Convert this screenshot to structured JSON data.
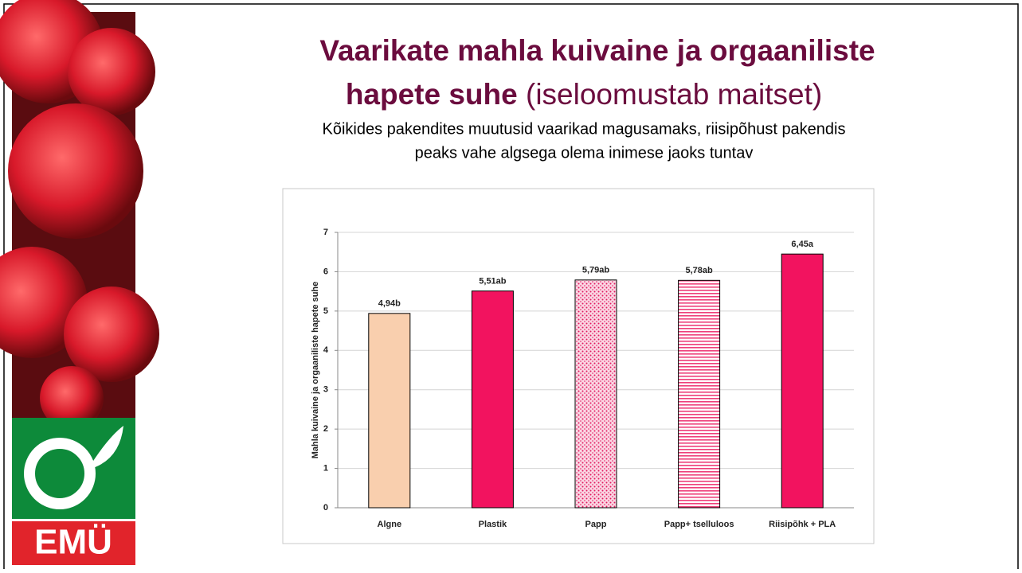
{
  "slide": {
    "title": "Vaarikate mahla kuivaine ja orgaaniliste",
    "title_bold_end": "hapete suhe",
    "title_note": "(iseloomustab maitset)",
    "subtitle": [
      "Kõikides pakendites muutusid vaarikad magusamaks, riisipõhust pakendis",
      "peaks vahe algsega olema inimese jaoks tuntav"
    ],
    "logo": "EMÜ"
  },
  "chart_data": {
    "type": "bar",
    "y_label": "Mahla kuivaine ja orgaaniliste hapete suhe",
    "categories": [
      "Algne",
      "Plastik",
      "Papp",
      "Papp+ tselluloos",
      "Riisipõhk + PLA"
    ],
    "values": [
      4.94,
      5.51,
      5.79,
      5.78,
      6.45
    ],
    "value_labels": [
      "4,94b",
      "5,51ab",
      "5,79ab",
      "5,78ab",
      "6,45a"
    ],
    "colors": [
      "#f9cfae",
      "#f2135f",
      "#f2135f",
      "#f2135f",
      "#f2135f"
    ],
    "fills": [
      "solid",
      "solid",
      "dots",
      "stripes",
      "solid"
    ],
    "ylim": [
      0,
      7
    ],
    "yticks": [
      0,
      1,
      2,
      3,
      4,
      5,
      6,
      7
    ],
    "grid": true
  }
}
